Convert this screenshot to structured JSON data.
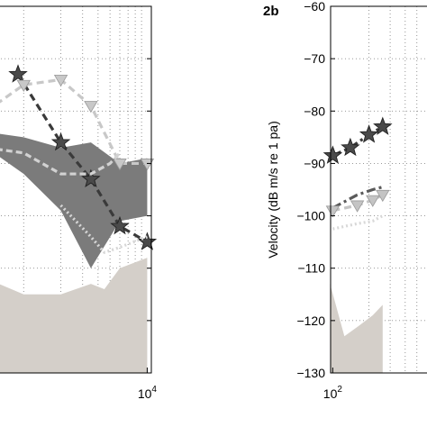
{
  "chart_data": [
    {
      "type": "line",
      "panel_label": "",
      "x_scale": "log",
      "xlim": [
        500,
        12000
      ],
      "ylim": [
        -130,
        -60
      ],
      "grid": true,
      "xtick_labels": [
        {
          "value": 10000,
          "base": "10",
          "exp": "4"
        }
      ],
      "ytick_values": [
        -60,
        -70,
        -80,
        -90,
        -100,
        -110,
        -120,
        -130
      ],
      "ylabel": "",
      "bands": [
        {
          "name": "",
          "color": "#7b7b7b",
          "upper": [
            {
              "x": 500,
              "y": -84
            },
            {
              "x": 1000,
              "y": -85
            },
            {
              "x": 2000,
              "y": -87
            },
            {
              "x": 3500,
              "y": -86
            },
            {
              "x": 6000,
              "y": -90
            },
            {
              "x": 10000,
              "y": -89
            }
          ],
          "lower": [
            {
              "x": 500,
              "y": -87
            },
            {
              "x": 1000,
              "y": -92
            },
            {
              "x": 2000,
              "y": -99
            },
            {
              "x": 3500,
              "y": -110
            },
            {
              "x": 6000,
              "y": -101
            },
            {
              "x": 10000,
              "y": -100
            }
          ]
        },
        {
          "name": "",
          "color": "#d4cfc9",
          "upper": [
            {
              "x": 500,
              "y": -112
            },
            {
              "x": 1000,
              "y": -115
            },
            {
              "x": 2000,
              "y": -115
            },
            {
              "x": 3500,
              "y": -113
            },
            {
              "x": 4500,
              "y": -114
            },
            {
              "x": 6000,
              "y": -110
            },
            {
              "x": 10000,
              "y": -108
            }
          ],
          "lower": [
            {
              "x": 500,
              "y": -130
            },
            {
              "x": 10000,
              "y": -130
            }
          ]
        }
      ],
      "series": [
        {
          "name": "",
          "color": "#3a3a3a",
          "dash": "8,5",
          "marker": "star",
          "points": [
            {
              "x": 900,
              "y": -73
            },
            {
              "x": 2000,
              "y": -86
            },
            {
              "x": 3500,
              "y": -93
            },
            {
              "x": 6000,
              "y": -102
            },
            {
              "x": 10000,
              "y": -105
            }
          ]
        },
        {
          "name": "",
          "color": "#c8c8c8",
          "dash": "8,5",
          "marker": "triangle-down",
          "points": [
            {
              "x": 500,
              "y": -80
            },
            {
              "x": 1000,
              "y": -75
            },
            {
              "x": 2000,
              "y": -74
            },
            {
              "x": 3500,
              "y": -79
            },
            {
              "x": 6000,
              "y": -90
            },
            {
              "x": 10000,
              "y": -90
            }
          ]
        },
        {
          "name": "",
          "color": "#d2d2d2",
          "dash": "7,4",
          "marker": "none",
          "points": [
            {
              "x": 500,
              "y": -87
            },
            {
              "x": 1000,
              "y": -88
            },
            {
              "x": 2000,
              "y": -92
            },
            {
              "x": 3500,
              "y": -92
            },
            {
              "x": 5000,
              "y": -90
            },
            {
              "x": 6000,
              "y": -88
            }
          ]
        },
        {
          "name": "",
          "color": "#d6d6d6",
          "dash": "2,3",
          "marker": "none",
          "points": [
            {
              "x": 2000,
              "y": -98
            },
            {
              "x": 3500,
              "y": -104
            },
            {
              "x": 4500,
              "y": -107
            },
            {
              "x": 6000,
              "y": -106
            },
            {
              "x": 10000,
              "y": -104
            }
          ]
        }
      ]
    },
    {
      "type": "line",
      "panel_label": "2b",
      "x_scale": "log",
      "xlim": [
        90,
        1500
      ],
      "ylim": [
        -130,
        -60
      ],
      "grid": true,
      "xtick_labels": [
        {
          "value": 100,
          "base": "10",
          "exp": "2"
        }
      ],
      "ytick_values": [
        -60,
        -70,
        -80,
        -90,
        -100,
        -110,
        -120,
        -130
      ],
      "ylabel": "Velocity (dB m/s re 1 pa)",
      "bands": [
        {
          "name": "",
          "color": "#d4cfc9",
          "upper": [
            {
              "x": 95,
              "y": -113
            },
            {
              "x": 125,
              "y": -123
            },
            {
              "x": 165,
              "y": -121
            },
            {
              "x": 215,
              "y": -119
            },
            {
              "x": 260,
              "y": -117
            }
          ],
          "lower": [
            {
              "x": 95,
              "y": -130
            },
            {
              "x": 260,
              "y": -130
            }
          ]
        }
      ],
      "series": [
        {
          "name": "",
          "color": "#3a3a3a",
          "dash": "10,4,3,4",
          "marker": "star",
          "points": [
            {
              "x": 100,
              "y": -88.5
            },
            {
              "x": 140,
              "y": -87
            },
            {
              "x": 200,
              "y": -84.5
            },
            {
              "x": 260,
              "y": -83
            }
          ]
        },
        {
          "name": "",
          "color": "#5a5a5a",
          "dash": "10,4,3,4",
          "marker": "none",
          "points": [
            {
              "x": 100,
              "y": -98.5
            },
            {
              "x": 160,
              "y": -96
            },
            {
              "x": 215,
              "y": -95
            },
            {
              "x": 260,
              "y": -94.5
            }
          ]
        },
        {
          "name": "",
          "color": "#c4c4c4",
          "dash": "8,5",
          "marker": "triangle-down",
          "points": [
            {
              "x": 100,
              "y": -99
            },
            {
              "x": 160,
              "y": -98
            },
            {
              "x": 215,
              "y": -97
            },
            {
              "x": 260,
              "y": -96
            }
          ]
        },
        {
          "name": "",
          "color": "#d8d8d8",
          "dash": "2,3",
          "marker": "none",
          "points": [
            {
              "x": 100,
              "y": -102.5
            },
            {
              "x": 160,
              "y": -101.5
            },
            {
              "x": 215,
              "y": -101
            },
            {
              "x": 260,
              "y": -100
            }
          ]
        }
      ]
    }
  ]
}
